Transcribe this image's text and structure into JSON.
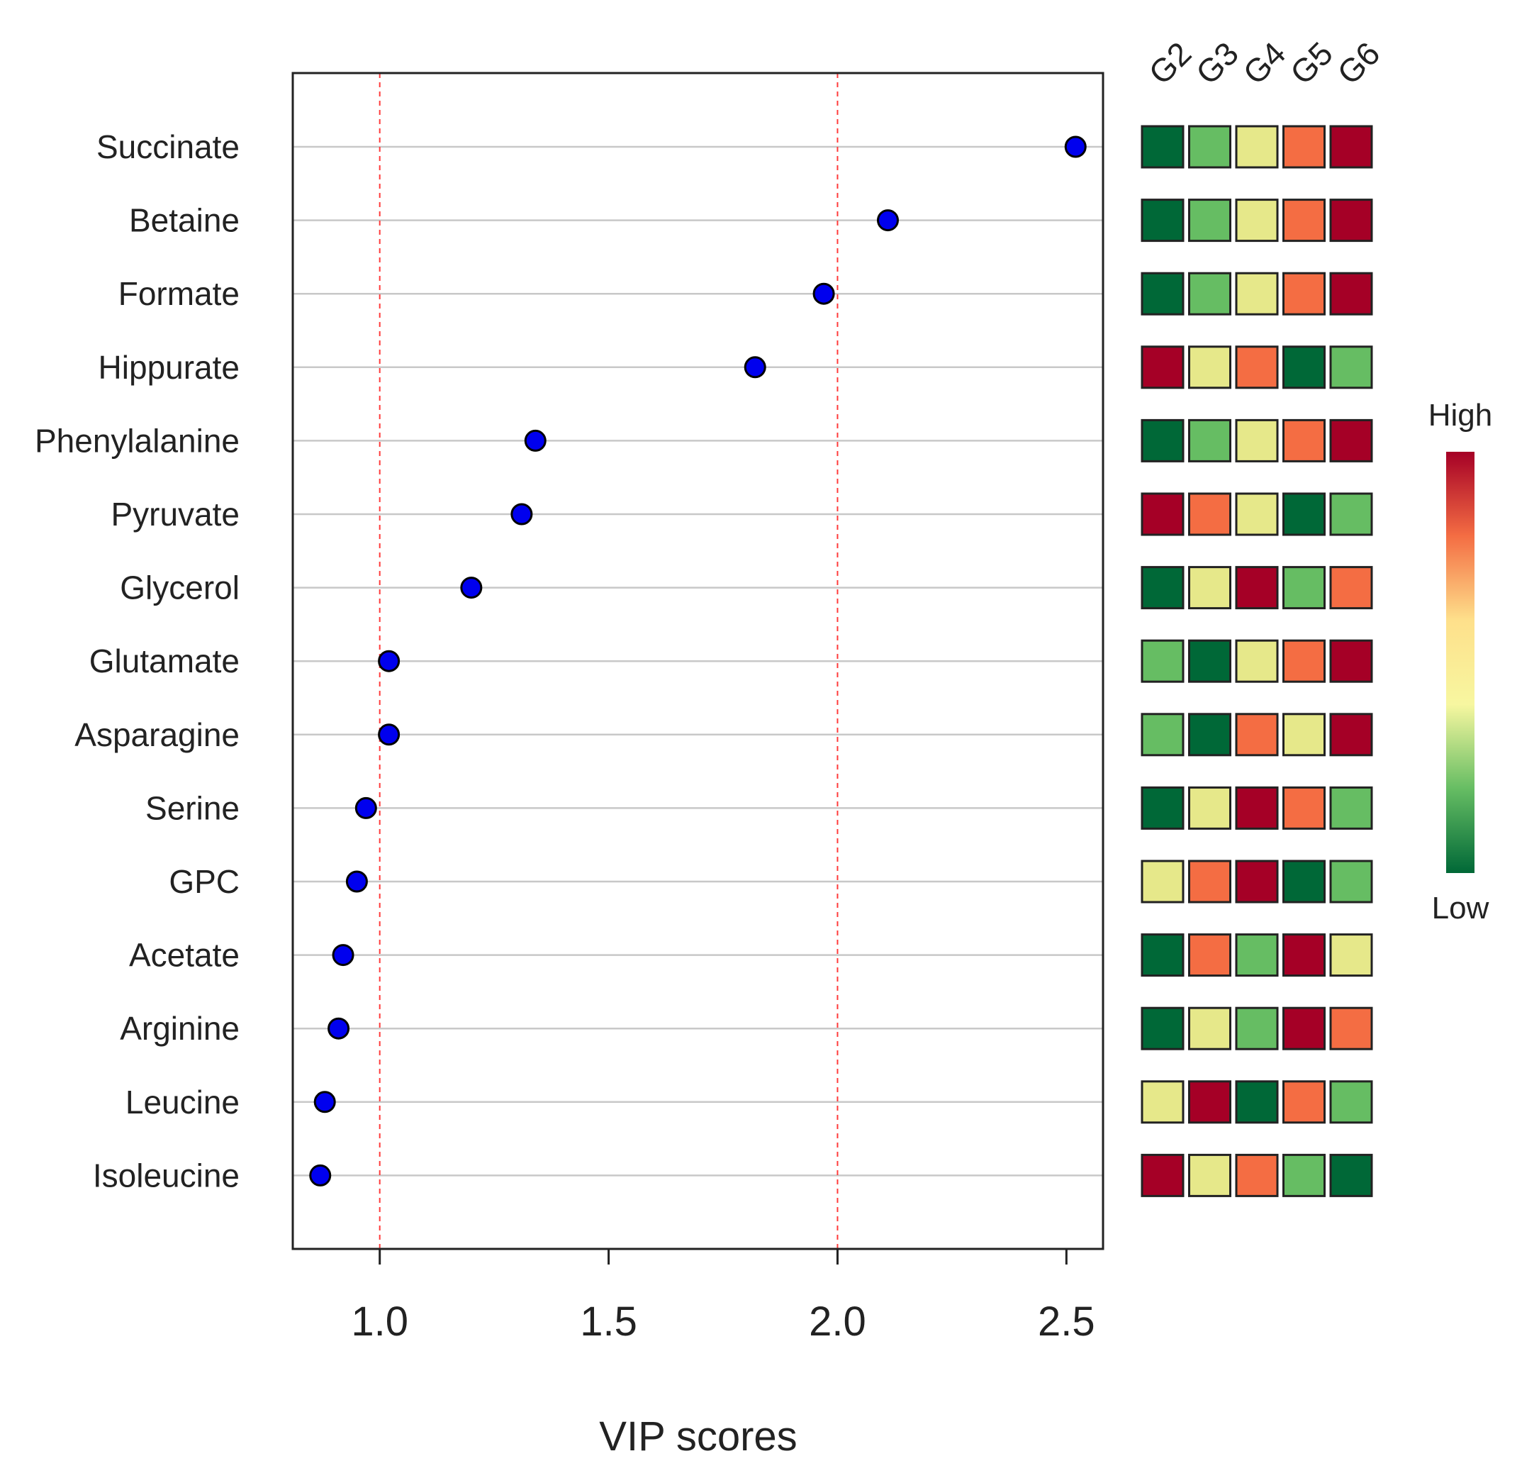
{
  "chart_data": {
    "type": "scatter",
    "xlabel": "VIP scores",
    "xlim": [
      0.81,
      2.58
    ],
    "xticks": [
      1.0,
      1.5,
      2.0,
      2.5
    ],
    "xtick_labels": [
      "1.0",
      "1.5",
      "2.0",
      "2.5"
    ],
    "reference_lines_x": [
      1.0,
      2.0
    ],
    "grid": "horizontal lines at each metabolite",
    "point_color": "#0000ee",
    "reference_line_color": "#ff3b3b",
    "metabolites": [
      "Succinate",
      "Betaine",
      "Formate",
      "Hippurate",
      "Phenylalanine",
      "Pyruvate",
      "Glycerol",
      "Glutamate",
      "Asparagine",
      "Serine",
      "GPC",
      "Acetate",
      "Arginine",
      "Leucine",
      "Isoleucine"
    ],
    "vip_scores": [
      2.52,
      2.11,
      1.97,
      1.82,
      1.34,
      1.31,
      1.2,
      1.02,
      1.02,
      0.97,
      0.95,
      0.92,
      0.91,
      0.88,
      0.87
    ],
    "heatmap": {
      "groups": [
        "G2",
        "G3",
        "G4",
        "G5",
        "G6"
      ],
      "levels": [
        [
          1,
          2,
          3,
          4,
          5
        ],
        [
          1,
          2,
          3,
          4,
          5
        ],
        [
          1,
          2,
          3,
          4,
          5
        ],
        [
          5,
          3,
          4,
          1,
          2
        ],
        [
          1,
          2,
          3,
          4,
          5
        ],
        [
          5,
          4,
          3,
          1,
          2
        ],
        [
          1,
          3,
          5,
          2,
          4
        ],
        [
          2,
          1,
          3,
          4,
          5
        ],
        [
          2,
          1,
          4,
          3,
          5
        ],
        [
          1,
          3,
          5,
          4,
          2
        ],
        [
          3,
          4,
          5,
          1,
          2
        ],
        [
          1,
          4,
          2,
          5,
          3
        ],
        [
          1,
          3,
          2,
          5,
          4
        ],
        [
          3,
          5,
          1,
          4,
          2
        ],
        [
          5,
          3,
          4,
          2,
          1
        ]
      ],
      "level_colors": {
        "1": "#006837",
        "2": "#66bd63",
        "3": "#e6e88a",
        "4": "#f46d43",
        "5": "#a50026"
      },
      "legend": {
        "high_label": "High",
        "low_label": "Low",
        "gradient_colors": [
          "#a50026",
          "#f46d43",
          "#fee08b",
          "#f7f7a0",
          "#66bd63",
          "#006837"
        ]
      }
    }
  }
}
